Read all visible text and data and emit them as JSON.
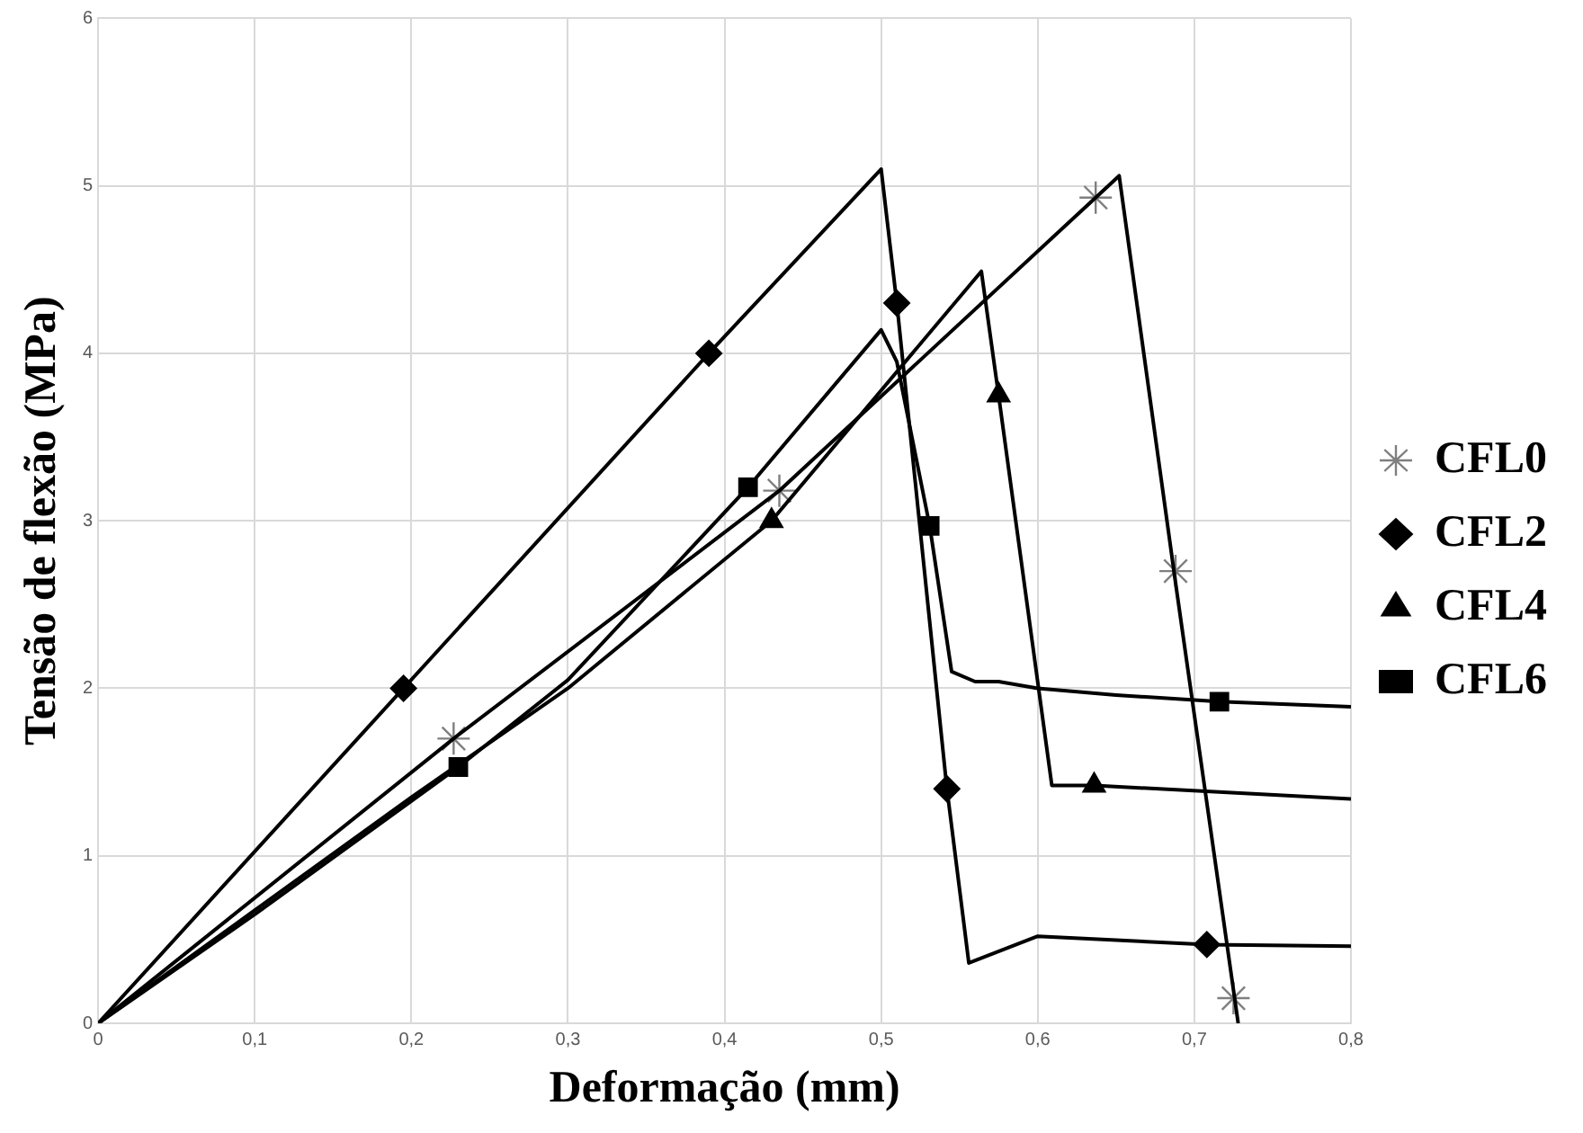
{
  "chart_data": {
    "type": "line",
    "xlabel": "Deformação (mm)",
    "ylabel": "Tensão de flexão (MPa)",
    "xlim": [
      0,
      0.8
    ],
    "ylim": [
      0,
      6
    ],
    "xticks": [
      0,
      {
        "value": 0.1,
        "label": "0,1"
      },
      {
        "value": 0.2,
        "label": "0,2"
      },
      {
        "value": 0.3,
        "label": "0,3"
      },
      {
        "value": 0.4,
        "label": "0,4"
      },
      {
        "value": 0.5,
        "label": "0,5"
      },
      {
        "value": 0.6,
        "label": "0,6"
      },
      {
        "value": 0.7,
        "label": "0,7"
      },
      {
        "value": 0.8,
        "label": "0,8"
      }
    ],
    "yticks": [
      0,
      1,
      2,
      3,
      4,
      5,
      6
    ],
    "grid": true,
    "legend": "right",
    "series": [
      {
        "type": "line",
        "marker": "none",
        "color": "#000000",
        "x": [
          0,
          0.227,
          0.435,
          0.637,
          0.652,
          0.688,
          0.728
        ],
        "values": [
          0,
          1.7,
          3.18,
          4.93,
          5.06,
          2.63,
          0
        ]
      },
      {
        "type": "line",
        "marker": "none",
        "color": "#000000",
        "x": [
          0,
          0.195,
          0.39,
          0.5,
          0.51,
          0.542,
          0.556,
          0.6,
          0.708,
          0.8
        ],
        "values": [
          0,
          2,
          4,
          5.1,
          4.3,
          1.4,
          0.36,
          0.52,
          0.47,
          0.46
        ]
      },
      {
        "type": "line",
        "marker": "none",
        "color": "#000000",
        "x": [
          0,
          0.2,
          0.3,
          0.43,
          0.564,
          0.575,
          0.609,
          0.636,
          0.8
        ],
        "values": [
          0,
          1.35,
          2,
          3,
          4.49,
          3.75,
          1.42,
          1.42,
          1.34
        ]
      },
      {
        "type": "line",
        "marker": "none",
        "color": "#000000",
        "x": [
          0,
          0.1,
          0.23,
          0.3,
          0.415,
          0.5,
          0.51,
          0.531,
          0.545,
          0.56,
          0.575,
          0.6,
          0.65,
          0.716,
          0.8
        ],
        "values": [
          0,
          0.65,
          1.53,
          2.05,
          3.2,
          4.14,
          3.95,
          2.97,
          2.1,
          2.04,
          2.04,
          2,
          1.96,
          1.92,
          1.89
        ]
      },
      {
        "type": "scatter",
        "name": "CFL0",
        "marker": "cross",
        "color": "#7f7f7f",
        "x": [
          0.227,
          0.435,
          0.637,
          0.688,
          0.725
        ],
        "values": [
          1.7,
          3.18,
          4.93,
          2.7,
          0.15
        ]
      },
      {
        "type": "scatter",
        "name": "CFL2",
        "marker": "diamond",
        "color": "#000000",
        "x": [
          0.195,
          0.39,
          0.51,
          0.542,
          0.708
        ],
        "values": [
          2,
          4,
          4.3,
          1.4,
          0.47
        ]
      },
      {
        "type": "scatter",
        "name": "CFL4",
        "marker": "triangle",
        "color": "#000000",
        "x": [
          0.43,
          0.575,
          0.636
        ],
        "values": [
          3,
          3.75,
          1.42
        ]
      },
      {
        "type": "scatter",
        "name": "CFL6",
        "marker": "square",
        "color": "#000000",
        "x": [
          0.23,
          0.415,
          0.531,
          0.716
        ],
        "values": [
          1.53,
          3.2,
          2.97,
          1.92
        ]
      }
    ]
  }
}
